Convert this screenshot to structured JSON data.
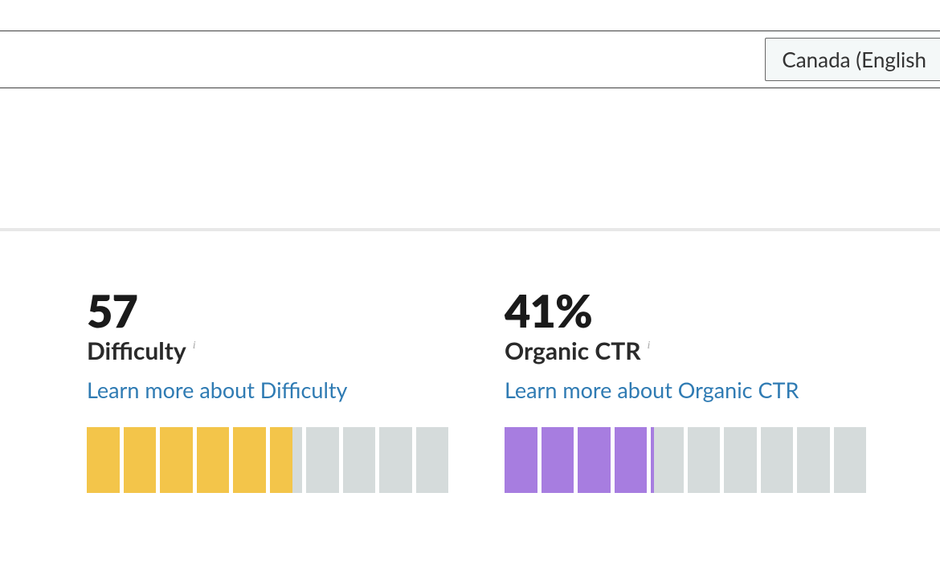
{
  "topbar": {
    "locale_label": "Canada (English"
  },
  "colors": {
    "divider": "#e8e8e8",
    "text_primary": "#1a1a1a",
    "text_secondary": "#2a2a2a",
    "link": "#2f7bb3",
    "info_icon": "#a8a8a8",
    "border_dark": "#404040",
    "select_bg": "#f4f8f8",
    "bar_inactive": "#d5dbdb"
  },
  "metrics": [
    {
      "value": "57",
      "label": "Difficulty",
      "link_text": "Learn more about Difficulty",
      "bar": {
        "total_segments": 10,
        "filled": 5.7,
        "fill_color": "#f3c54a",
        "inactive_color": "#d5dbdb"
      }
    },
    {
      "value": "41%",
      "label": "Organic CTR",
      "link_text": "Learn more about Organic CTR",
      "bar": {
        "total_segments": 10,
        "filled": 4.1,
        "fill_color": "#a77de0",
        "inactive_color": "#d5dbdb"
      }
    }
  ]
}
